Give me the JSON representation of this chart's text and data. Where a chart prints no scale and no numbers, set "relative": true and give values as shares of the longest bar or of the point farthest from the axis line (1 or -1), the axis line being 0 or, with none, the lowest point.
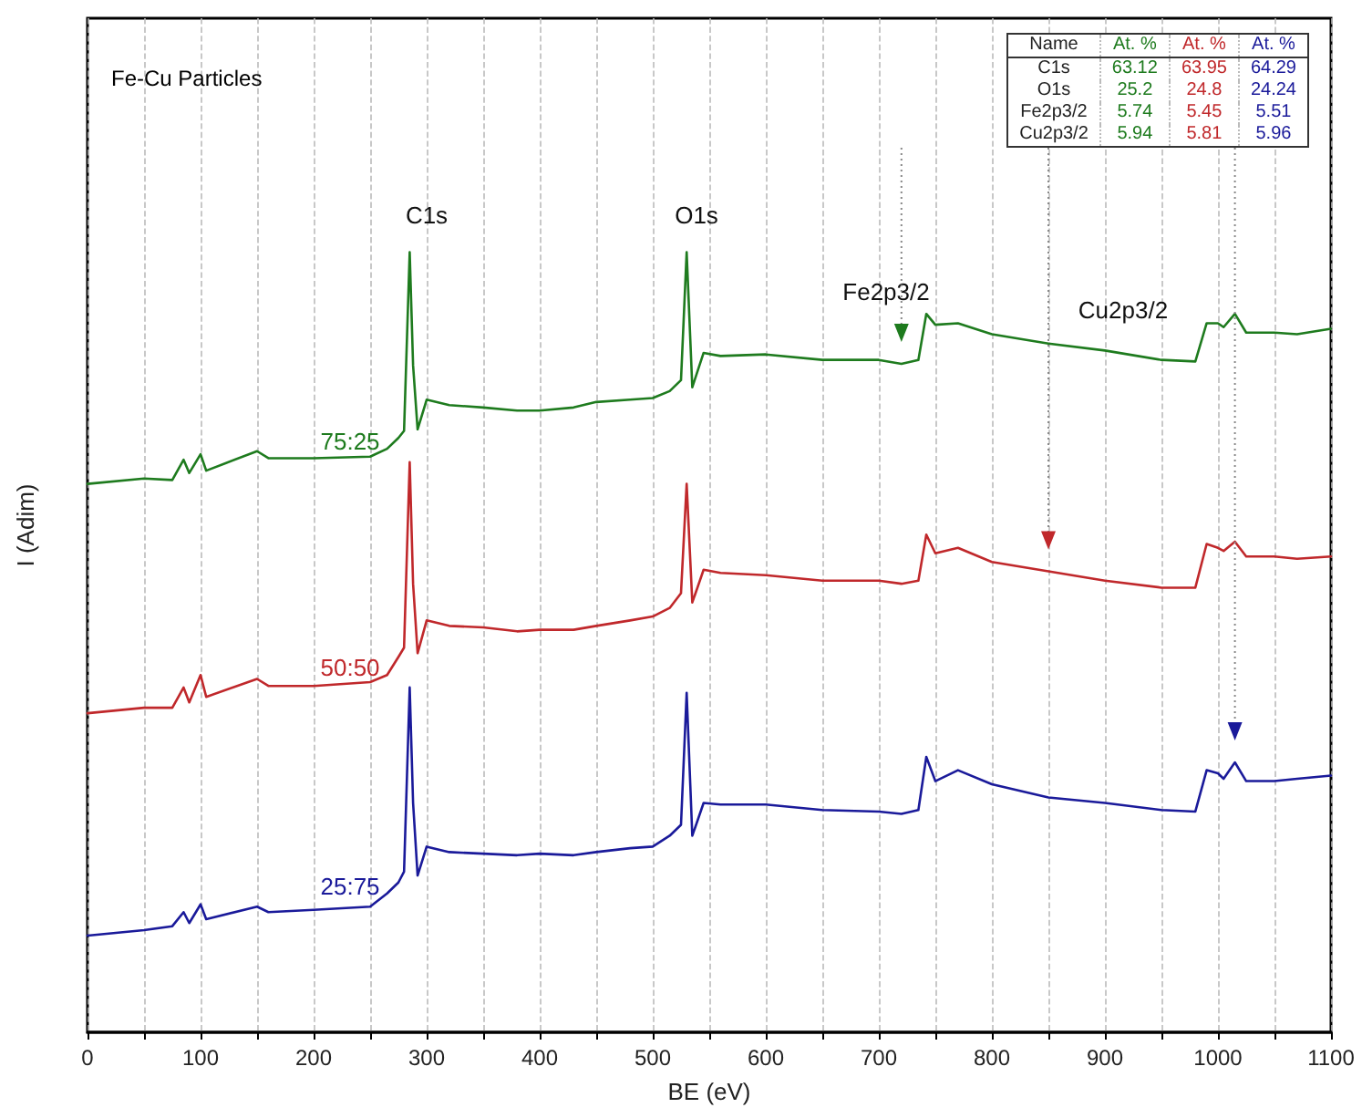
{
  "chart_data": {
    "type": "line",
    "title": "Fe-Cu Particles",
    "xlabel": "BE (eV)",
    "ylabel": "I (Adim)",
    "relative": true,
    "x": [
      0,
      50,
      75,
      85,
      90,
      100,
      105,
      150,
      160,
      200,
      250,
      265,
      275,
      280,
      285,
      288,
      292,
      300,
      320,
      350,
      380,
      400,
      430,
      450,
      480,
      500,
      515,
      525,
      530,
      535,
      545,
      560,
      600,
      650,
      700,
      720,
      735,
      742,
      750,
      770,
      800,
      850,
      900,
      950,
      980,
      990,
      1000,
      1005,
      1015,
      1025,
      1050,
      1070,
      1100
    ],
    "series": [
      {
        "name": "75:25",
        "color": "#1e7b1e",
        "values": [
          0.703,
          0.71,
          0.708,
          0.734,
          0.717,
          0.741,
          0.72,
          0.745,
          0.736,
          0.736,
          0.738,
          0.748,
          0.762,
          0.771,
          1,
          0.855,
          0.773,
          0.811,
          0.804,
          0.801,
          0.797,
          0.797,
          0.801,
          0.808,
          0.811,
          0.813,
          0.822,
          0.836,
          1,
          0.827,
          0.871,
          0.867,
          0.869,
          0.862,
          0.862,
          0.857,
          0.862,
          0.921,
          0.907,
          0.909,
          0.895,
          0.883,
          0.874,
          0.862,
          0.86,
          0.909,
          0.909,
          0.904,
          0.921,
          0.897,
          0.897,
          0.895,
          0.902
        ]
      },
      {
        "name": "50:50",
        "color": "#c0282b",
        "values": [
          0.409,
          0.416,
          0.416,
          0.442,
          0.423,
          0.458,
          0.43,
          0.453,
          0.444,
          0.444,
          0.449,
          0.458,
          0.481,
          0.493,
          0.731,
          0.575,
          0.486,
          0.528,
          0.521,
          0.519,
          0.514,
          0.516,
          0.516,
          0.521,
          0.528,
          0.533,
          0.544,
          0.563,
          0.703,
          0.551,
          0.593,
          0.589,
          0.586,
          0.579,
          0.579,
          0.575,
          0.579,
          0.638,
          0.614,
          0.621,
          0.603,
          0.591,
          0.579,
          0.57,
          0.57,
          0.626,
          0.621,
          0.617,
          0.629,
          0.61,
          0.61,
          0.607,
          0.61
        ]
      },
      {
        "name": "25:75",
        "color": "#1a1a9a",
        "values": [
          0.124,
          0.131,
          0.136,
          0.154,
          0.14,
          0.164,
          0.145,
          0.161,
          0.154,
          0.157,
          0.161,
          0.178,
          0.192,
          0.206,
          0.442,
          0.294,
          0.201,
          0.238,
          0.231,
          0.229,
          0.227,
          0.229,
          0.227,
          0.231,
          0.236,
          0.238,
          0.252,
          0.266,
          0.435,
          0.252,
          0.294,
          0.292,
          0.292,
          0.285,
          0.283,
          0.28,
          0.285,
          0.353,
          0.322,
          0.336,
          0.318,
          0.301,
          0.294,
          0.285,
          0.283,
          0.336,
          0.332,
          0.325,
          0.346,
          0.322,
          0.322,
          0.325,
          0.329
        ]
      }
    ],
    "xlim": [
      0,
      1100
    ],
    "xticks": [
      0,
      {
        "value": 50,
        "label": null
      },
      100,
      {
        "value": 150,
        "label": null
      },
      200,
      {
        "value": 250,
        "label": null
      },
      300,
      {
        "value": 350,
        "label": null
      },
      400,
      {
        "value": 450,
        "label": null
      },
      500,
      {
        "value": 550,
        "label": null
      },
      600,
      {
        "value": 650,
        "label": null
      },
      700,
      {
        "value": 750,
        "label": null
      },
      800,
      {
        "value": 850,
        "label": null
      },
      900,
      {
        "value": 950,
        "label": null
      },
      1000,
      {
        "value": 1050,
        "label": null
      },
      1100
    ],
    "grid": "x",
    "marker": "none",
    "line_style": "solid",
    "legend": false,
    "tick_labels": "x",
    "annotations": [
      "C1s",
      "O1s",
      "Fe2p3/2",
      "Cu2p3/2",
      "Name",
      "At. %",
      "At. %",
      "At. %",
      "C1s",
      "63.12",
      "63.95",
      "64.29",
      "O1s",
      "25.2",
      "24.8",
      "24.24",
      "Fe2p3/2",
      "5.74",
      "5.45",
      "5.51",
      "Cu2p3/2",
      "5.94",
      "5.81",
      "5.96"
    ]
  }
}
